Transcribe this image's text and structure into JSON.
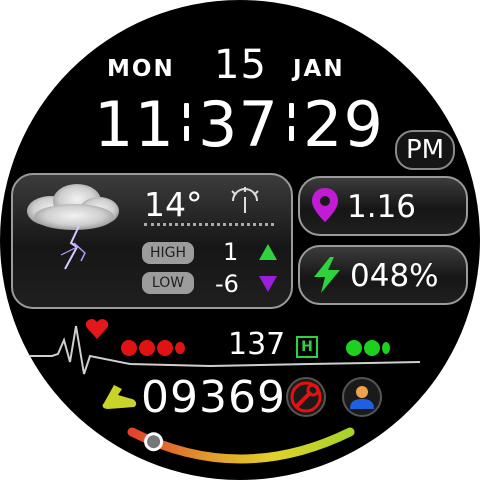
{
  "date": {
    "weekday": "MON",
    "day": "15",
    "month": "JAN"
  },
  "time": {
    "hour": "11",
    "minute": "37",
    "second": "29",
    "ampm": "PM"
  },
  "weather": {
    "temperature": "14°",
    "high_label": "HIGH",
    "high_value": "1",
    "low_label": "LOW",
    "low_value": "-6"
  },
  "distance": {
    "value": "1.16"
  },
  "battery": {
    "value": "048%"
  },
  "heart_rate": {
    "value": "137",
    "zone_badge": "H"
  },
  "steps": {
    "value": "09369",
    "progress": 0.1
  },
  "colors": {
    "accent_purple": "#c21bd6",
    "accent_green": "#2fd13c",
    "heart_red": "#e4171b",
    "dot_red": "#e01212",
    "dot_green": "#1fd11f",
    "shoe_yellow": "#c9d42a",
    "settings_red": "#e21212",
    "profile_blue": "#1f5fe0"
  }
}
